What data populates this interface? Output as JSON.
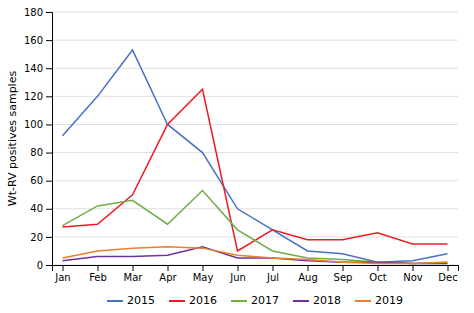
{
  "chart_data": {
    "type": "line",
    "categories": [
      "Jan",
      "Feb",
      "Mar",
      "Apr",
      "May",
      "Jun",
      "Jul",
      "Aug",
      "Sep",
      "Oct",
      "Nov",
      "Dec"
    ],
    "series": [
      {
        "name": "2015",
        "color": "#4472c4",
        "values": [
          92,
          120,
          153,
          100,
          80,
          40,
          25,
          10,
          8,
          2,
          3,
          8
        ]
      },
      {
        "name": "2016",
        "color": "#ed1c24",
        "values": [
          27,
          29,
          50,
          100,
          125,
          10,
          25,
          18,
          18,
          23,
          15,
          15
        ]
      },
      {
        "name": "2017",
        "color": "#70ad47",
        "values": [
          28,
          42,
          46,
          29,
          53,
          25,
          10,
          5,
          4,
          2,
          1,
          2
        ]
      },
      {
        "name": "2018",
        "color": "#7030a0",
        "values": [
          3,
          6,
          6,
          7,
          13,
          5,
          5,
          3,
          2,
          2,
          1,
          1
        ]
      },
      {
        "name": "2019",
        "color": "#ed7d31",
        "values": [
          5,
          10,
          12,
          13,
          12,
          7,
          5,
          4,
          2,
          1,
          1,
          2
        ]
      }
    ],
    "ylabel": "Wt-RV positives samples",
    "ylim": [
      0,
      180
    ],
    "yticks": [
      0,
      20,
      40,
      60,
      80,
      100,
      120,
      140,
      160,
      180
    ],
    "grid": true,
    "legend": "bottom"
  }
}
